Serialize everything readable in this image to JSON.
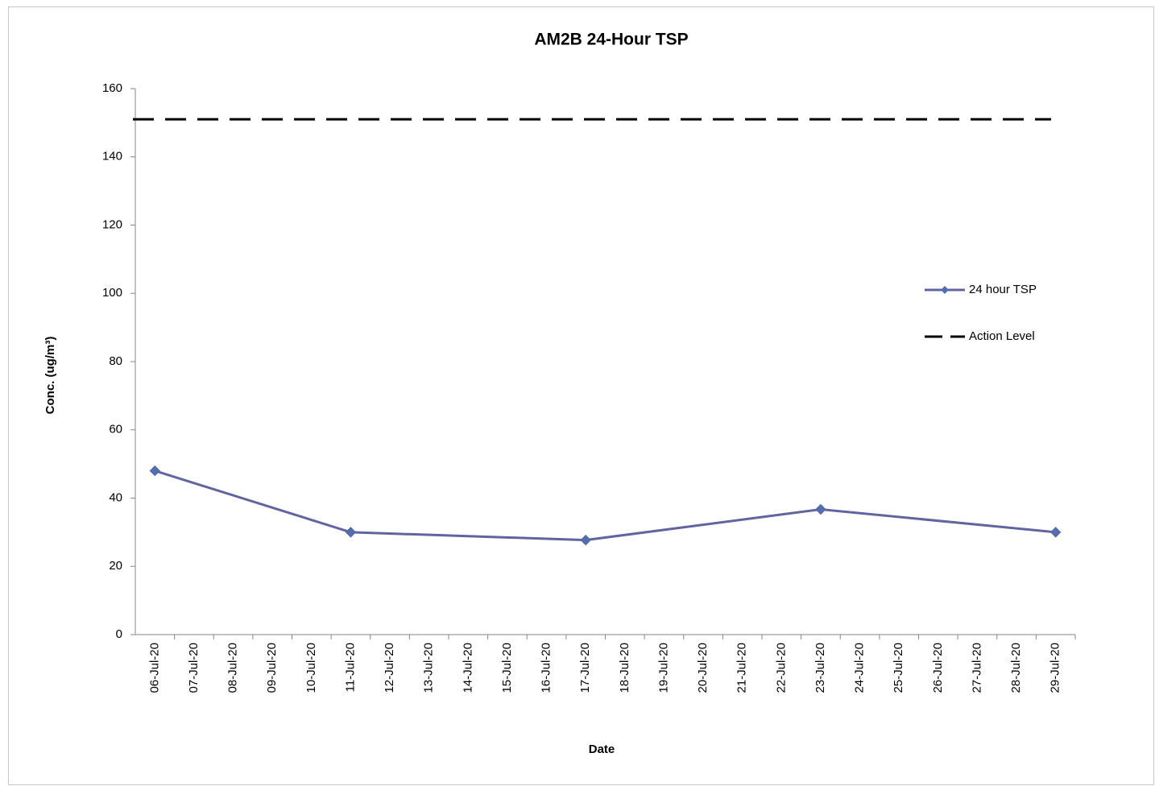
{
  "chart_data": {
    "type": "line",
    "title": "AM2B 24-Hour TSP",
    "x_label": "Date",
    "y_label": "Conc. (ug/m³)",
    "categories": [
      "06-Jul-20",
      "07-Jul-20",
      "08-Jul-20",
      "09-Jul-20",
      "10-Jul-20",
      "11-Jul-20",
      "12-Jul-20",
      "13-Jul-20",
      "14-Jul-20",
      "15-Jul-20",
      "16-Jul-20",
      "17-Jul-20",
      "18-Jul-20",
      "19-Jul-20",
      "20-Jul-20",
      "21-Jul-20",
      "22-Jul-20",
      "23-Jul-20",
      "24-Jul-20",
      "25-Jul-20",
      "26-Jul-20",
      "27-Jul-20",
      "28-Jul-20",
      "29-Jul-20"
    ],
    "series": [
      {
        "name": "24 hour TSP",
        "color": "#6064a0",
        "marker": "diamond",
        "marker_color": "#4f6fb0",
        "x": [
          "06-Jul-20",
          "11-Jul-20",
          "17-Jul-20",
          "23-Jul-20",
          "29-Jul-20"
        ],
        "values": [
          48,
          30,
          27.7,
          36.7,
          30
        ]
      },
      {
        "name": "Action Level",
        "color": "#000000",
        "dash": true,
        "x": [
          "06-Jul-20",
          "29-Jul-20"
        ],
        "values": [
          151,
          151
        ]
      }
    ],
    "ylim": [
      0,
      160
    ],
    "yticks": [
      0,
      20,
      40,
      60,
      80,
      100,
      120,
      140,
      160
    ],
    "grid": false,
    "legend": "right"
  }
}
